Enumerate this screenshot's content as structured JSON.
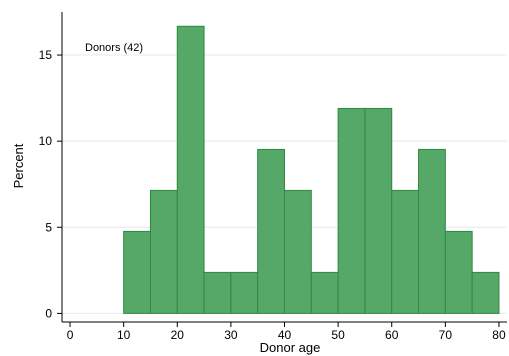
{
  "chart_data": {
    "type": "bar",
    "title": "",
    "xlabel": "Donor age",
    "ylabel": "Percent",
    "xlim": [
      -1.5,
      81.5
    ],
    "ylim": [
      -0.5,
      17.5
    ],
    "x_ticks": [
      0,
      10,
      20,
      30,
      40,
      50,
      60,
      70,
      80
    ],
    "y_ticks": [
      0,
      5,
      10,
      15
    ],
    "bin_width": 5,
    "bins": [
      {
        "start": 10,
        "end": 15,
        "value": 4.76
      },
      {
        "start": 15,
        "end": 20,
        "value": 7.14
      },
      {
        "start": 20,
        "end": 25,
        "value": 16.67
      },
      {
        "start": 25,
        "end": 30,
        "value": 2.38
      },
      {
        "start": 30,
        "end": 35,
        "value": 2.38
      },
      {
        "start": 35,
        "end": 40,
        "value": 9.52
      },
      {
        "start": 40,
        "end": 45,
        "value": 7.14
      },
      {
        "start": 45,
        "end": 50,
        "value": 2.38
      },
      {
        "start": 50,
        "end": 55,
        "value": 11.9
      },
      {
        "start": 55,
        "end": 60,
        "value": 11.9
      },
      {
        "start": 60,
        "end": 65,
        "value": 7.14
      },
      {
        "start": 65,
        "end": 70,
        "value": 9.52
      },
      {
        "start": 70,
        "end": 75,
        "value": 4.76
      },
      {
        "start": 75,
        "end": 80,
        "value": 2.38
      }
    ],
    "series": [
      {
        "name": "Donors (42)"
      }
    ],
    "legend": {
      "text": "Donors (42)",
      "position": "top-left"
    },
    "grid": true,
    "colors": {
      "bar_fill": "#55a868",
      "bar_stroke": "#2d8a3e",
      "grid": "#e8e8e8",
      "axis": "#000000"
    }
  }
}
